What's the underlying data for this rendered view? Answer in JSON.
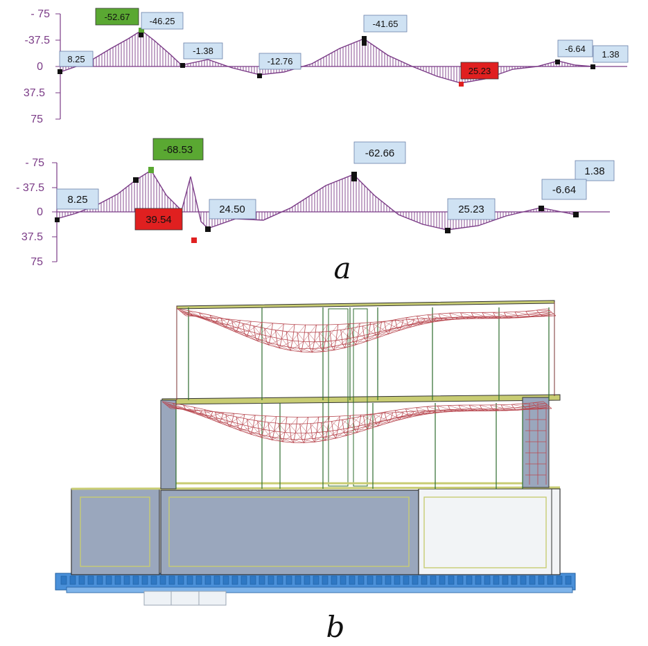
{
  "panel_a": {
    "letter": "a",
    "diagram_top": {
      "ticks": [
        "- 75",
        "-37.5",
        "0",
        "37.5",
        "75"
      ],
      "labels": [
        {
          "text": "-52.67",
          "kind": "min"
        },
        {
          "text": "-46.25",
          "kind": "normal"
        },
        {
          "text": "8.25",
          "kind": "normal"
        },
        {
          "text": "-1.38",
          "kind": "normal"
        },
        {
          "text": "-12.76",
          "kind": "normal"
        },
        {
          "text": "-41.65",
          "kind": "normal"
        },
        {
          "text": "25.23",
          "kind": "max"
        },
        {
          "text": "-6.64",
          "kind": "normal"
        },
        {
          "text": "1.38",
          "kind": "normal"
        }
      ]
    },
    "diagram_bottom": {
      "ticks": [
        "- 75",
        "- 37.5",
        "0",
        "37.5",
        "75"
      ],
      "labels": [
        {
          "text": "-68.53",
          "kind": "min"
        },
        {
          "text": "8.25",
          "kind": "normal"
        },
        {
          "text": "39.54",
          "kind": "max"
        },
        {
          "text": "24.50",
          "kind": "normal"
        },
        {
          "text": "-62.66",
          "kind": "normal"
        },
        {
          "text": "25.23",
          "kind": "normal"
        },
        {
          "text": "1.38",
          "kind": "normal"
        },
        {
          "text": "-6.64",
          "kind": "normal"
        }
      ]
    }
  },
  "panel_b": {
    "letter": "b"
  },
  "colors": {
    "diagram": "#7a3a86",
    "label_fill": "#cfe2f3",
    "min_fill": "#5aa832",
    "max_fill": "#e02020",
    "wall": "#9aa7bd",
    "wall_light": "#f2f4f6",
    "slab": "#c8cc73",
    "mesh": "#b84850",
    "frame": "#2d6b2d",
    "foundation": "#4a90d9"
  }
}
